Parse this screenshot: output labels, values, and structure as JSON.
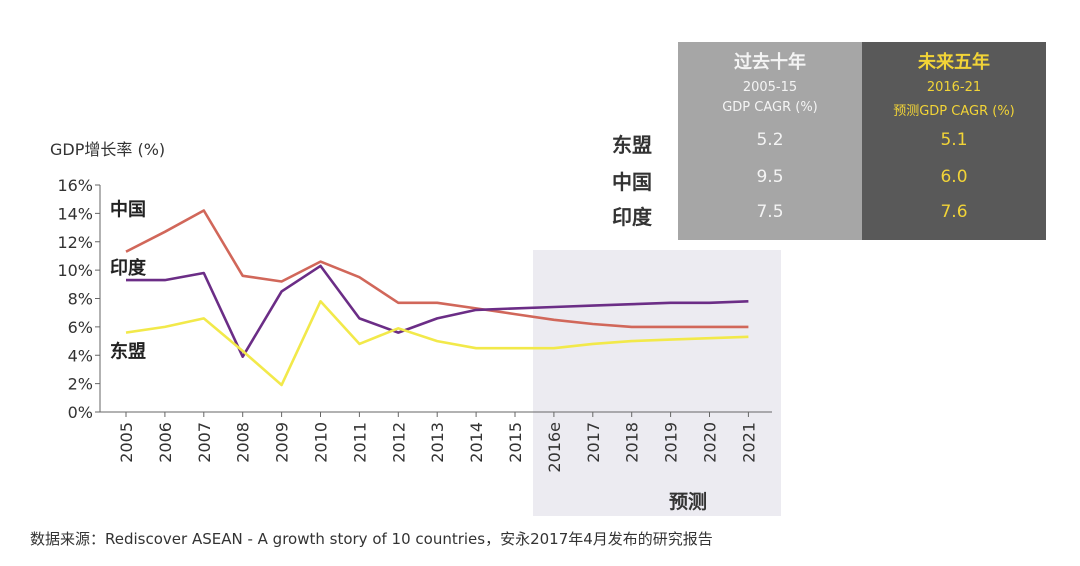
{
  "chart_data": {
    "type": "line",
    "ylabel": "GDP增长率 (%)",
    "y_ticks": [
      "0%",
      "2%",
      "4%",
      "6%",
      "8%",
      "10%",
      "12%",
      "14%",
      "16%"
    ],
    "ylim": [
      0,
      16
    ],
    "categories": [
      "2005",
      "2006",
      "2007",
      "2008",
      "2009",
      "2010",
      "2011",
      "2012",
      "2013",
      "2014",
      "2015",
      "2016e",
      "2017",
      "2018",
      "2019",
      "2020",
      "2021"
    ],
    "forecast_label": "预测",
    "forecast_start": "2016e",
    "grid": false,
    "series": [
      {
        "name": "中国",
        "color": "#d1675a",
        "values": [
          11.3,
          12.7,
          14.2,
          9.6,
          9.2,
          10.6,
          9.5,
          7.7,
          7.7,
          7.3,
          6.9,
          6.5,
          6.2,
          6.0,
          6.0,
          6.0,
          6.0
        ]
      },
      {
        "name": "印度",
        "color": "#6b2d86",
        "values": [
          9.3,
          9.3,
          9.8,
          3.9,
          8.5,
          10.3,
          6.6,
          5.6,
          6.6,
          7.2,
          7.3,
          7.4,
          7.5,
          7.6,
          7.7,
          7.7,
          7.8
        ]
      },
      {
        "name": "东盟",
        "color": "#f2e94a",
        "values": [
          5.6,
          6.0,
          6.6,
          4.3,
          1.9,
          7.8,
          4.8,
          5.9,
          5.0,
          4.5,
          4.5,
          4.5,
          4.8,
          5.0,
          5.1,
          5.2,
          5.3
        ]
      }
    ],
    "series_labels": [
      {
        "name": "中国",
        "at_y": 14.4
      },
      {
        "name": "印度",
        "at_y": 10.3
      },
      {
        "name": "东盟",
        "at_y": 4.4
      }
    ]
  },
  "summary_table": {
    "past": {
      "title": "过去十年",
      "sub1": "2005-15",
      "sub2": "GDP CAGR (%)",
      "values": [
        "5.2",
        "9.5",
        "7.5"
      ]
    },
    "future": {
      "title": "未来五年",
      "sub1": "2016-21",
      "sub2": "预测GDP CAGR (%)",
      "values": [
        "5.1",
        "6.0",
        "7.6"
      ]
    },
    "rows": [
      "东盟",
      "中国",
      "印度"
    ]
  },
  "source_text": "数据来源：Rediscover ASEAN - A growth story of 10 countries，安永2017年4月发布的研究报告"
}
